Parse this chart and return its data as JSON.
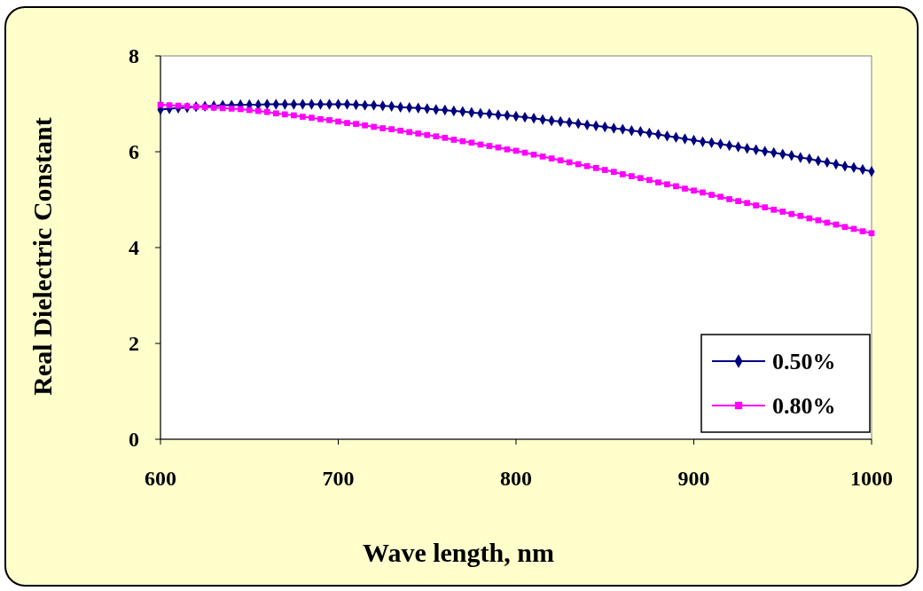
{
  "chart_data": {
    "type": "line",
    "xlabel": "Wave length, nm",
    "ylabel": "Real Dielectric Constant",
    "x": [
      600,
      605,
      610,
      615,
      620,
      625,
      630,
      635,
      640,
      645,
      650,
      655,
      660,
      665,
      670,
      675,
      680,
      685,
      690,
      695,
      700,
      705,
      710,
      715,
      720,
      725,
      730,
      735,
      740,
      745,
      750,
      755,
      760,
      765,
      770,
      775,
      780,
      785,
      790,
      795,
      800,
      805,
      810,
      815,
      820,
      825,
      830,
      835,
      840,
      845,
      850,
      855,
      860,
      865,
      870,
      875,
      880,
      885,
      890,
      895,
      900,
      905,
      910,
      915,
      920,
      925,
      930,
      935,
      940,
      945,
      950,
      955,
      960,
      965,
      970,
      975,
      980,
      985,
      990,
      995,
      1000
    ],
    "series": [
      {
        "name": "0.50%",
        "color": "#000080",
        "marker": "diamond",
        "values": [
          6.88,
          6.9,
          6.91,
          6.92,
          6.94,
          6.95,
          6.96,
          6.97,
          6.97,
          6.98,
          6.98,
          6.98,
          6.99,
          6.99,
          6.99,
          6.99,
          6.99,
          6.99,
          6.99,
          6.99,
          6.99,
          6.99,
          6.98,
          6.97,
          6.97,
          6.96,
          6.95,
          6.93,
          6.92,
          6.91,
          6.9,
          6.88,
          6.87,
          6.85,
          6.84,
          6.82,
          6.8,
          6.79,
          6.77,
          6.76,
          6.74,
          6.72,
          6.7,
          6.67,
          6.65,
          6.63,
          6.61,
          6.59,
          6.56,
          6.54,
          6.52,
          6.49,
          6.47,
          6.44,
          6.42,
          6.39,
          6.36,
          6.33,
          6.3,
          6.27,
          6.24,
          6.21,
          6.19,
          6.16,
          6.13,
          6.1,
          6.07,
          6.04,
          6.01,
          5.98,
          5.95,
          5.92,
          5.88,
          5.85,
          5.81,
          5.78,
          5.74,
          5.7,
          5.67,
          5.63,
          5.59
        ]
      },
      {
        "name": "0.80%",
        "color": "#ff00ff",
        "marker": "square",
        "values": [
          6.98,
          6.97,
          6.96,
          6.95,
          6.94,
          6.93,
          6.92,
          6.91,
          6.9,
          6.89,
          6.87,
          6.85,
          6.83,
          6.8,
          6.78,
          6.76,
          6.73,
          6.71,
          6.68,
          6.66,
          6.63,
          6.6,
          6.58,
          6.55,
          6.52,
          6.49,
          6.47,
          6.44,
          6.41,
          6.38,
          6.35,
          6.32,
          6.29,
          6.25,
          6.22,
          6.19,
          6.15,
          6.12,
          6.09,
          6.05,
          6.02,
          5.98,
          5.94,
          5.9,
          5.86,
          5.82,
          5.78,
          5.74,
          5.7,
          5.66,
          5.62,
          5.58,
          5.53,
          5.49,
          5.45,
          5.41,
          5.36,
          5.32,
          5.28,
          5.23,
          5.19,
          5.15,
          5.1,
          5.06,
          5.01,
          4.97,
          4.93,
          4.88,
          4.84,
          4.79,
          4.75,
          4.7,
          4.66,
          4.61,
          4.57,
          4.52,
          4.48,
          4.43,
          4.39,
          4.34,
          4.3
        ]
      }
    ],
    "xlim": [
      600,
      1000
    ],
    "xticks": [
      600,
      700,
      800,
      900,
      1000
    ],
    "ylim": [
      0,
      8
    ],
    "yticks": [
      0,
      2,
      4,
      6,
      8
    ],
    "grid": false,
    "legend": "bottom right"
  }
}
